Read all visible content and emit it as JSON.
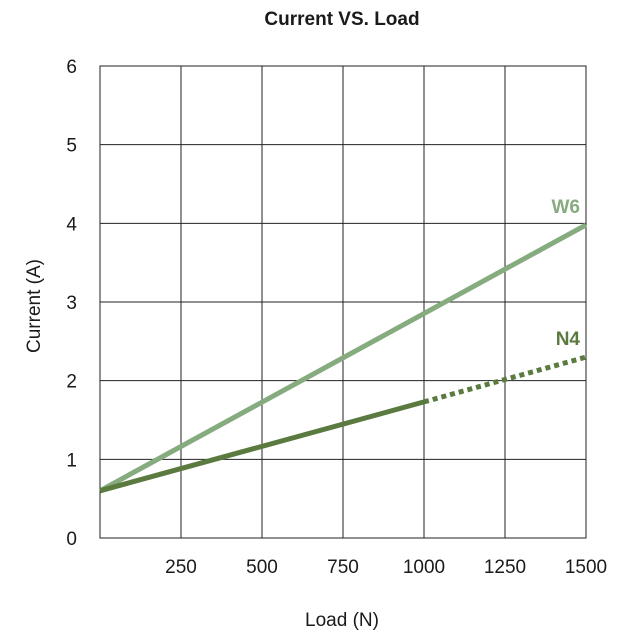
{
  "chart_data": {
    "type": "line",
    "title": "Current  VS. Load",
    "xlabel": "Load (N)",
    "ylabel": "Current (A)",
    "xlim": [
      0,
      1500
    ],
    "ylim": [
      0,
      6
    ],
    "x_ticks": [
      250,
      500,
      750,
      1000,
      1250,
      1500
    ],
    "x_tick_labels": [
      "250",
      "500",
      "750",
      "1000",
      "1250",
      "1500"
    ],
    "y_ticks": [
      0,
      1,
      2,
      3,
      4,
      5,
      6
    ],
    "y_tick_labels": [
      "0",
      "1",
      "2",
      "3",
      "4",
      "5",
      "6"
    ],
    "grid": true,
    "series": [
      {
        "name": "W6",
        "color": "#85ab7e",
        "line_style": "solid",
        "x": [
          0,
          1500
        ],
        "y": [
          0.6,
          3.98
        ]
      },
      {
        "name": "N4",
        "color": "#5a7a3f",
        "segments": [
          {
            "line_style": "solid",
            "x": [
              0,
              1000
            ],
            "y": [
              0.6,
              1.73
            ]
          },
          {
            "line_style": "dotted",
            "x": [
              1000,
              1500
            ],
            "y": [
              1.73,
              2.3
            ]
          }
        ]
      }
    ]
  }
}
